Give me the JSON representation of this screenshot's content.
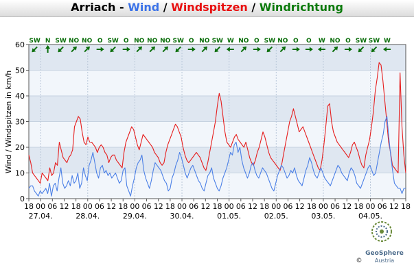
{
  "header": {
    "station": "Arriach",
    "sep1": " - ",
    "wind_label": "Wind",
    "sep2": " / ",
    "gust_label": "Windspitzen",
    "sep3": " / ",
    "dir_label": "Windrichtung"
  },
  "colors": {
    "wind": "#4c80e6",
    "gust": "#e61e1e",
    "direction": "#0a6e0a",
    "title_wind": "#3a72e8",
    "title_gust": "#e81010",
    "title_dir": "#0a7a0a"
  },
  "logo": {
    "name": "GeoSphere",
    "sub": "Austria",
    "copyright": "©"
  },
  "chart_data": {
    "type": "line",
    "ylabel": "Wind / Windspitzen in km/h",
    "ylim": [
      0,
      60
    ],
    "yticks": [
      "0",
      "10",
      "20",
      "30",
      "40",
      "50",
      "60"
    ],
    "xlim": [
      0,
      192
    ],
    "x_hour_ticks": [
      "18",
      "00",
      "06",
      "12",
      "18",
      "00",
      "06",
      "12",
      "18",
      "00",
      "06",
      "12",
      "18",
      "00",
      "06",
      "12",
      "18",
      "00",
      "06",
      "12",
      "18",
      "00",
      "06",
      "12",
      "18",
      "00",
      "06",
      "12",
      "18",
      "00",
      "06",
      "12",
      "18",
      "00",
      " 06"
    ],
    "date_labels": [
      "27.04.",
      "28.04.",
      "29.04.",
      "30.04.",
      "01.05.",
      "02.05.",
      "03.05.",
      "04.05."
    ],
    "direction_labels": [
      "SW",
      "N",
      "SW",
      "NO",
      "NO",
      "O",
      "SW",
      "O",
      "NO",
      "NO",
      "NO",
      "SW",
      "O",
      "NO",
      "SW",
      "W",
      "NO",
      "O",
      "SW",
      "NO",
      "O",
      "O",
      "W",
      "NO",
      "O",
      "SW",
      "SW",
      "W"
    ],
    "series": [
      {
        "name": "Wind",
        "values": [
          4,
          5,
          5,
          3,
          2,
          1,
          3,
          2,
          3,
          4,
          2,
          6,
          1,
          5,
          6,
          3,
          8,
          12,
          6,
          4,
          5,
          7,
          5,
          9,
          6,
          7,
          10,
          4,
          6,
          12,
          9,
          7,
          13,
          15,
          18,
          14,
          10,
          8,
          12,
          13,
          10,
          11,
          9,
          10,
          8,
          9,
          10,
          8,
          6,
          7,
          11,
          12,
          5,
          3,
          1,
          5,
          8,
          12,
          14,
          15,
          17,
          11,
          8,
          6,
          4,
          7,
          11,
          14,
          13,
          12,
          11,
          9,
          7,
          6,
          3,
          4,
          8,
          10,
          13,
          15,
          18,
          16,
          13,
          10,
          8,
          10,
          12,
          13,
          11,
          9,
          7,
          6,
          4,
          3,
          6,
          9,
          10,
          12,
          8,
          6,
          4,
          3,
          5,
          8,
          10,
          12,
          15,
          18,
          17,
          21,
          22,
          18,
          20,
          15,
          12,
          10,
          8,
          10,
          13,
          14,
          11,
          9,
          8,
          10,
          12,
          11,
          10,
          8,
          6,
          4,
          3,
          6,
          9,
          11,
          13,
          12,
          10,
          8,
          9,
          11,
          10,
          12,
          9,
          7,
          6,
          5,
          8,
          11,
          13,
          16,
          14,
          11,
          9,
          8,
          10,
          12,
          10,
          8,
          7,
          6,
          5,
          7,
          9,
          11,
          13,
          12,
          10,
          9,
          8,
          7,
          10,
          12,
          11,
          9,
          6,
          5,
          4,
          6,
          8,
          10,
          12,
          13,
          11,
          9,
          10,
          14,
          18,
          22,
          25,
          30,
          32,
          24,
          17,
          11,
          6,
          5,
          4,
          4,
          2,
          4,
          4
        ]
      },
      {
        "name": "Windspitzen",
        "values": [
          17,
          14,
          10,
          9,
          8,
          7,
          6,
          10,
          9,
          8,
          7,
          12,
          9,
          10,
          14,
          13,
          22,
          19,
          16,
          15,
          14,
          16,
          17,
          19,
          28,
          30,
          32,
          31,
          26,
          22,
          21,
          24,
          22,
          22,
          21,
          20,
          18,
          20,
          21,
          20,
          18,
          17,
          14,
          16,
          17,
          17,
          15,
          14,
          13,
          12,
          18,
          22,
          24,
          26,
          28,
          27,
          24,
          21,
          19,
          22,
          25,
          24,
          23,
          22,
          21,
          20,
          18,
          17,
          16,
          14,
          13,
          14,
          18,
          21,
          23,
          25,
          27,
          29,
          28,
          26,
          24,
          20,
          17,
          15,
          14,
          15,
          16,
          17,
          18,
          17,
          16,
          14,
          12,
          11,
          14,
          18,
          22,
          26,
          30,
          36,
          41,
          38,
          32,
          26,
          22,
          21,
          20,
          22,
          24,
          25,
          23,
          22,
          21,
          20,
          22,
          19,
          16,
          14,
          13,
          15,
          18,
          20,
          23,
          26,
          24,
          21,
          18,
          16,
          15,
          14,
          13,
          12,
          11,
          14,
          18,
          22,
          26,
          30,
          32,
          35,
          32,
          29,
          26,
          27,
          28,
          26,
          24,
          22,
          20,
          18,
          16,
          14,
          12,
          11,
          15,
          21,
          28,
          36,
          37,
          30,
          26,
          24,
          22,
          21,
          20,
          19,
          18,
          17,
          16,
          18,
          21,
          22,
          20,
          18,
          15,
          13,
          12,
          17,
          20,
          23,
          28,
          34,
          42,
          47,
          53,
          52,
          46,
          38,
          30,
          22,
          18,
          13,
          12,
          11,
          10,
          49,
          28,
          17,
          10
        ]
      }
    ]
  }
}
